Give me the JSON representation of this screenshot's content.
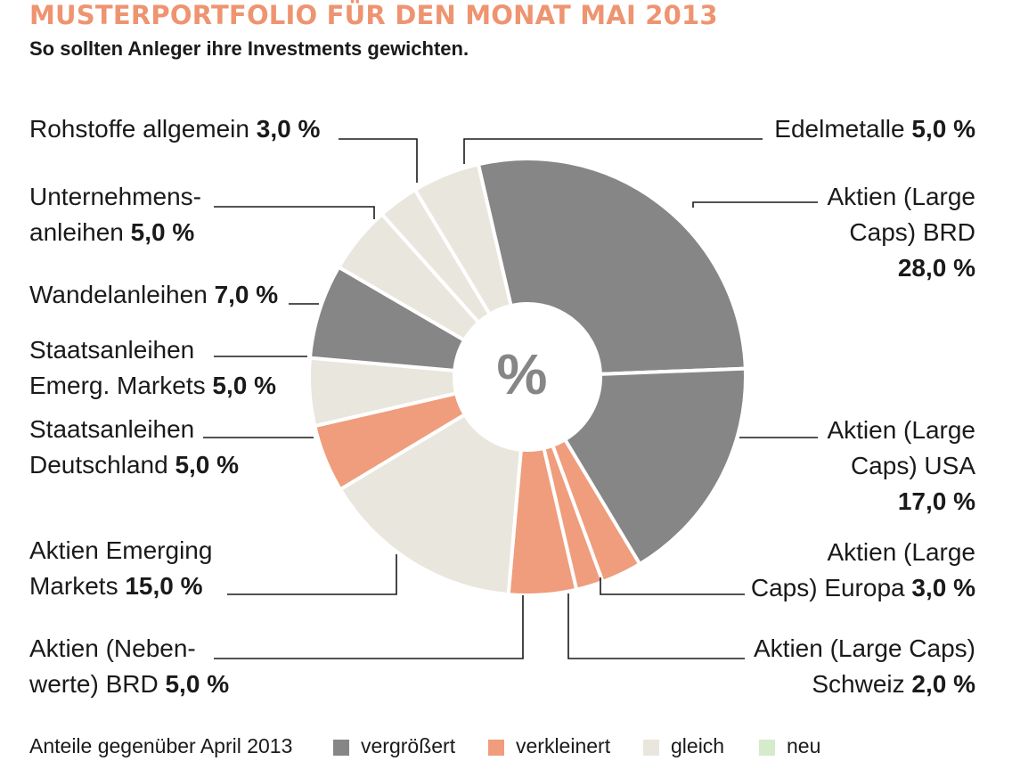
{
  "title": "MUSTERPORTFOLIO FÜR DEN MONAT MAI 2013",
  "subtitle": "So sollten Anleger ihre Investments gewichten.",
  "colors": {
    "vergroessert": "#868687",
    "verkleinert": "#ef9d7c",
    "gleich": "#e9e6dd",
    "neu": "#d4ebcc",
    "title": "#ee9470"
  },
  "chart_data": {
    "type": "pie",
    "center_label": "%",
    "unit": "%",
    "slices": [
      {
        "label_lines": [
          "Aktien (Large",
          "Caps) BRD"
        ],
        "value_text": "28,0 %",
        "value": 28.0,
        "status": "vergroessert"
      },
      {
        "label_lines": [
          "Aktien (Large",
          "Caps) USA"
        ],
        "value_text": "17,0 %",
        "value": 17.0,
        "status": "vergroessert"
      },
      {
        "label_lines": [
          "Aktien (Large",
          "Caps) Europa"
        ],
        "value_text": "3,0 %",
        "value": 3.0,
        "status": "verkleinert"
      },
      {
        "label_lines": [
          "Aktien (Large Caps)",
          "Schweiz"
        ],
        "value_text": "2,0 %",
        "value": 2.0,
        "status": "verkleinert"
      },
      {
        "label_lines": [
          "Aktien (Neben-",
          "werte) BRD"
        ],
        "value_text": "5,0 %",
        "value": 5.0,
        "status": "verkleinert"
      },
      {
        "label_lines": [
          "Aktien Emerging",
          "Markets"
        ],
        "value_text": "15,0 %",
        "value": 15.0,
        "status": "gleich"
      },
      {
        "label_lines": [
          "Staatsanleihen",
          "Deutschland"
        ],
        "value_text": "5,0 %",
        "value": 5.0,
        "status": "verkleinert"
      },
      {
        "label_lines": [
          "Staatsanleihen",
          "Emerg. Markets"
        ],
        "value_text": "5,0 %",
        "value": 5.0,
        "status": "gleich"
      },
      {
        "label_lines": [
          "Wandelanleihen"
        ],
        "value_text": "7,0 %",
        "value": 7.0,
        "status": "vergroessert"
      },
      {
        "label_lines": [
          "Unternehmens-",
          "anleihen"
        ],
        "value_text": "5,0 %",
        "value": 5.0,
        "status": "gleich"
      },
      {
        "label_lines": [
          "Rohstoffe allgemein"
        ],
        "value_text": "3,0 %",
        "value": 3.0,
        "status": "gleich"
      },
      {
        "label_lines": [
          "Edelmetalle"
        ],
        "value_text": "5,0 %",
        "value": 5.0,
        "status": "gleich"
      }
    ],
    "legend": {
      "title": "Anteile gegenüber April 2013",
      "items": [
        {
          "key": "vergroessert",
          "label": "vergrößert"
        },
        {
          "key": "verkleinert",
          "label": "verkleinert"
        },
        {
          "key": "gleich",
          "label": "gleich"
        },
        {
          "key": "neu",
          "label": "neu"
        }
      ]
    }
  }
}
